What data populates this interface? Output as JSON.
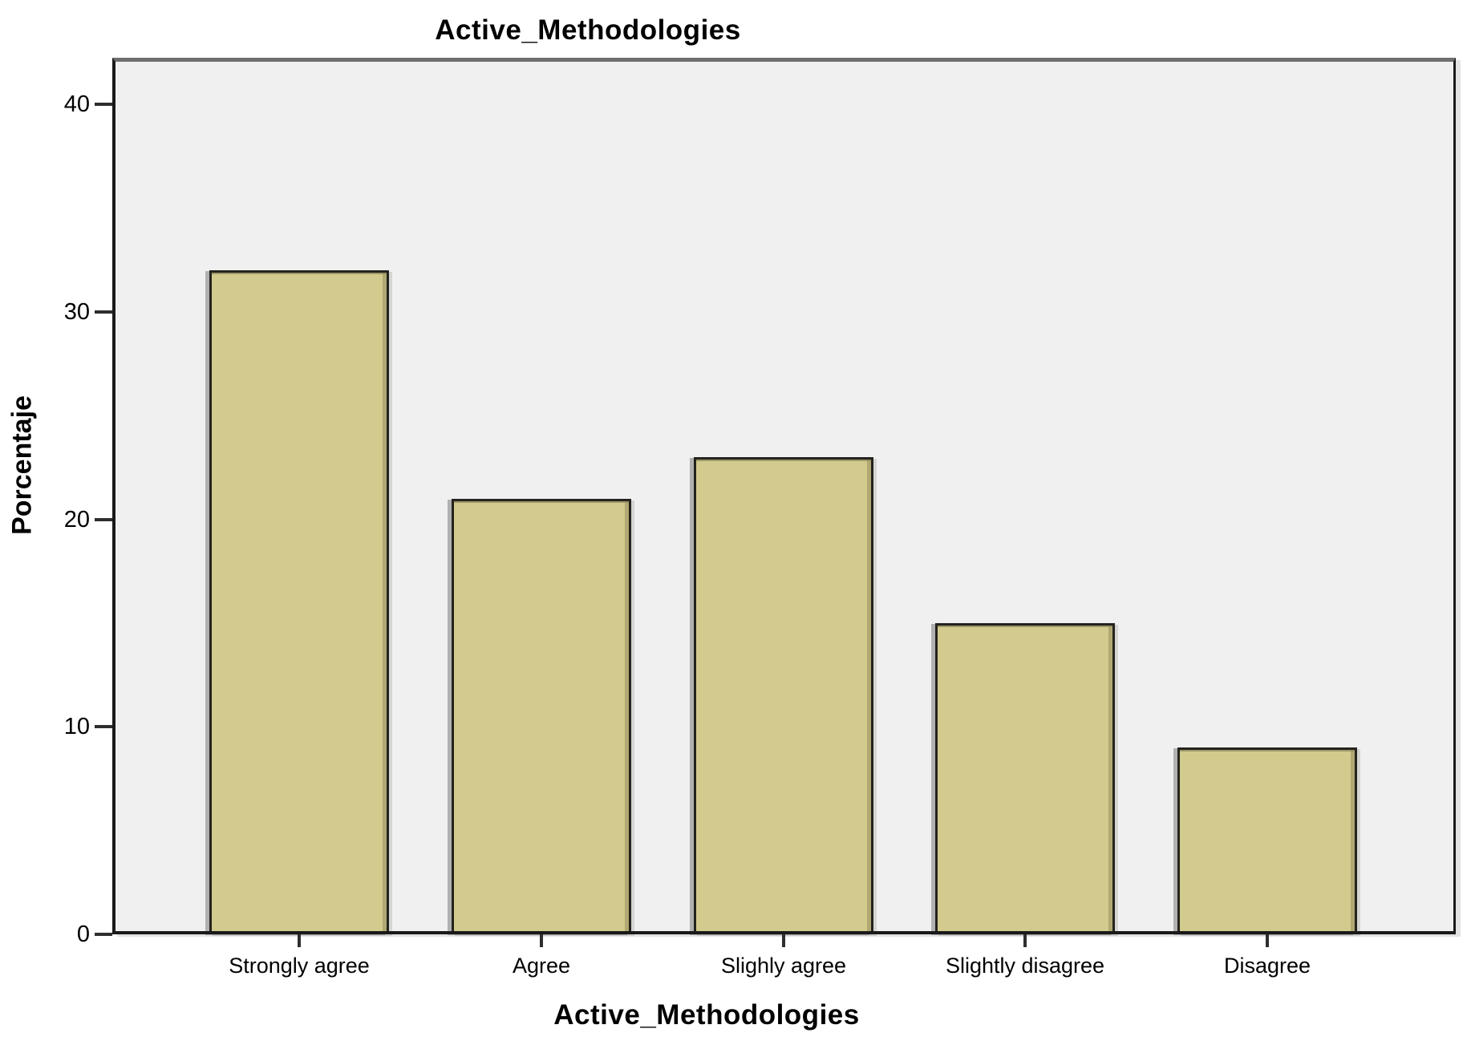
{
  "chart_data": {
    "type": "bar",
    "title": "Active_Methodologies",
    "xlabel": "Active_Methodologies",
    "ylabel": "Porcentaje",
    "categories": [
      "Strongly agree",
      "Agree",
      "Slighly agree",
      "Slightly disagree",
      "Disagree"
    ],
    "values": [
      32,
      21,
      23,
      15,
      9
    ],
    "ylim": [
      0,
      42
    ],
    "yticks": [
      0,
      10,
      20,
      30,
      40
    ],
    "grid": false,
    "legend": "none",
    "colors": {
      "bar_fill": "#d2cb8d",
      "bar_border": "#24231d",
      "plot_bg": "#f0f0f0",
      "frame_top": "#6e6e6e",
      "axis": "#1a1a1a",
      "text": "#000000"
    }
  }
}
